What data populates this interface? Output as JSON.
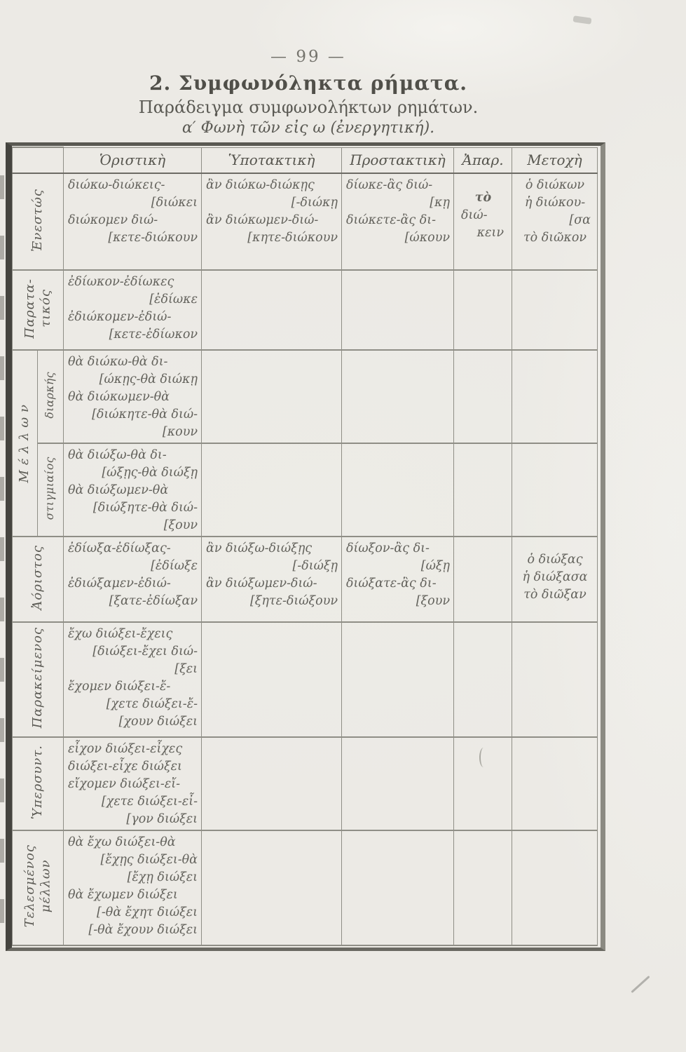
{
  "page": {
    "number": "— 99 —",
    "title": "2. Συμφωνόληκτα ρήματα.",
    "subtitle": "Παράδειγμα συμφωνολήκτων ρημάτων.",
    "voice_line": "α′ Φωνὴ τῶν εἰς ω (ἐνεργητική)."
  },
  "table": {
    "headers": [
      "Ὁριστικὴ",
      "Ὑποτακτικὴ",
      "Προστακτικὴ",
      "Ἀπαρ.",
      "Μετοχὴ"
    ],
    "rows": [
      {
        "tense": [
          "Ἐνεστώς"
        ],
        "oristiki": [
          "διώκω-διώκεις-",
          "[διώκει",
          "διώκομεν διώ-",
          "[κετε-διώκουν"
        ],
        "ypotaktiki": [
          "ἂν διώκω-διώκῃς",
          "[-διώκῃ",
          "ἂν διώκωμεν-διώ-",
          "[κητε-διώκουν"
        ],
        "prostaktiki": [
          "δίωκε-ἂς διώ-",
          "[κῃ",
          "διώκετε-ἂς δι-",
          "[ώκουν"
        ],
        "apar": [
          "τὸ",
          "διώ-",
          "κειν"
        ],
        "metochi": [
          "ὁ διώκων",
          "ἡ διώκου-",
          "[σα",
          "τὸ διῶκον"
        ]
      },
      {
        "tense": [
          "Παρατα-",
          "τικός"
        ],
        "oristiki": [
          "ἐδίωκον-ἐδίωκες",
          "[ἐδίωκε",
          "ἐδιώκομεν-ἐδιώ-",
          "[κετε-ἐδίωκον"
        ]
      },
      {
        "tense_outer": [
          "Μέλλων"
        ],
        "tense_inner": [
          "διαρκής"
        ],
        "oristiki": [
          "θὰ διώκω-θὰ δι-",
          "[ώκῃς-θὰ διώκῃ",
          "θὰ διώκωμεν-θὰ",
          "[διώκητε-θὰ διώ-",
          "[κουν"
        ]
      },
      {
        "tense_inner": [
          "στιγμιαίος"
        ],
        "oristiki": [
          "θὰ διώξω-θὰ δι-",
          "[ώξῃς-θὰ διώξῃ",
          "θὰ διώξωμεν-θὰ",
          "[διώξητε-θὰ διώ-",
          "[ξουν"
        ]
      },
      {
        "tense": [
          "Ἀόριστος"
        ],
        "oristiki": [
          "ἐδίωξα-ἐδίωξας-",
          "[ἐδίωξε",
          "ἐδιώξαμεν-ἐδιώ-",
          "[ξατε-ἐδίωξαν"
        ],
        "ypotaktiki": [
          "ἂν διώξω-διώξῃς",
          "[-διώξῃ",
          "ἂν διώξωμεν-διώ-",
          "[ξητε-διώξουν"
        ],
        "prostaktiki": [
          "δίωξον-ἂς δι-",
          "[ώξῃ",
          "διώξατε-ἂς δι-",
          "[ξουν"
        ],
        "metochi": [
          "ὁ διώξας",
          "ἡ διώξασα",
          "τὸ διῶξαν"
        ]
      },
      {
        "tense": [
          "Παρακείμενος"
        ],
        "oristiki": [
          "ἔχω διώξει-ἔχεις",
          "[διώξει-ἔχει διώ-",
          "[ξει",
          "ἔχομεν διώξει-ἔ-",
          "[χετε διώξει-ἔ-",
          "[χουν διώξει"
        ]
      },
      {
        "tense": [
          "Ὑπερσυντ."
        ],
        "oristiki": [
          "εἶχον διώξει-εἶχες",
          "διώξει-εἶχε διώξει",
          "εἴχομεν διώξει-εἴ-",
          "[χετε διώξει-εἶ-",
          "[γον διώξει"
        ]
      },
      {
        "tense": [
          "Τελεσμένος",
          "μέλλων"
        ],
        "oristiki": [
          "θὰ ἔχω διώξει-θὰ",
          "[ἔχῃς διώξει-θὰ",
          "[ἔχῃ διώξει",
          "θὰ ἔχωμεν διώξει",
          "[-θὰ ἔχητ διώξει",
          "[-θὰ ἔχουν διώξει"
        ]
      }
    ]
  }
}
